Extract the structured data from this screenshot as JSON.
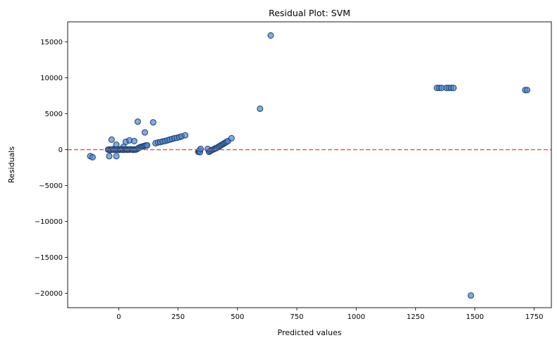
{
  "chart_data": {
    "type": "scatter",
    "title": "Residual Plot: SVM",
    "xlabel": "Predicted values",
    "ylabel": "Residuals",
    "xlim": [
      -215,
      1822
    ],
    "ylim": [
      -22000,
      17800
    ],
    "xticks": [
      0,
      250,
      500,
      750,
      1000,
      1250,
      1500,
      1750
    ],
    "yticks": [
      -20000,
      -15000,
      -10000,
      -5000,
      0,
      5000,
      10000,
      15000
    ],
    "x_tick_labels": [
      "0",
      "250",
      "500",
      "750",
      "1000",
      "1250",
      "1500",
      "1750"
    ],
    "y_tick_labels": [
      "−20000",
      "−15000",
      "−10000",
      "−5000",
      "0",
      "5000",
      "10000",
      "15000"
    ],
    "grid": false,
    "reference_line": {
      "y": 0,
      "style": "dashed",
      "color": "#e8523f"
    },
    "marker_fill": "#4a86d9",
    "marker_edge": "#1f3f66",
    "points": [
      {
        "x": 640,
        "y": 15900
      },
      {
        "x": 595,
        "y": 5700
      },
      {
        "x": 80,
        "y": 3900
      },
      {
        "x": 145,
        "y": 3800
      },
      {
        "x": 110,
        "y": 2400
      },
      {
        "x": -30,
        "y": 1400
      },
      {
        "x": 30,
        "y": 1100
      },
      {
        "x": 45,
        "y": 1300
      },
      {
        "x": 65,
        "y": 1200
      },
      {
        "x": -10,
        "y": 700
      },
      {
        "x": 20,
        "y": 400
      },
      {
        "x": -120,
        "y": -900
      },
      {
        "x": -110,
        "y": -1050
      },
      {
        "x": -40,
        "y": -900
      },
      {
        "x": -10,
        "y": -900
      },
      {
        "x": 1483,
        "y": -20300
      },
      {
        "x": 1340,
        "y": 8600
      },
      {
        "x": 1350,
        "y": 8600
      },
      {
        "x": 1360,
        "y": 8600
      },
      {
        "x": 1380,
        "y": 8600
      },
      {
        "x": 1390,
        "y": 8600
      },
      {
        "x": 1400,
        "y": 8600
      },
      {
        "x": 1410,
        "y": 8600
      },
      {
        "x": 1712,
        "y": 8300
      },
      {
        "x": 1720,
        "y": 8300
      },
      {
        "x": -45,
        "y": 0
      },
      {
        "x": -40,
        "y": 50
      },
      {
        "x": -35,
        "y": -50
      },
      {
        "x": -30,
        "y": 0
      },
      {
        "x": -25,
        "y": 80
      },
      {
        "x": -20,
        "y": -30
      },
      {
        "x": -15,
        "y": 20
      },
      {
        "x": -10,
        "y": 0
      },
      {
        "x": -5,
        "y": 60
      },
      {
        "x": 0,
        "y": -40
      },
      {
        "x": 5,
        "y": 30
      },
      {
        "x": 10,
        "y": 0
      },
      {
        "x": 15,
        "y": 50
      },
      {
        "x": 20,
        "y": -20
      },
      {
        "x": 25,
        "y": 10
      },
      {
        "x": 30,
        "y": 40
      },
      {
        "x": 35,
        "y": -10
      },
      {
        "x": 40,
        "y": 30
      },
      {
        "x": 45,
        "y": 0
      },
      {
        "x": 50,
        "y": 60
      },
      {
        "x": 55,
        "y": 20
      },
      {
        "x": 60,
        "y": -30
      },
      {
        "x": 65,
        "y": 40
      },
      {
        "x": 70,
        "y": 0
      },
      {
        "x": 75,
        "y": 50
      },
      {
        "x": 80,
        "y": 150
      },
      {
        "x": 85,
        "y": 250
      },
      {
        "x": 90,
        "y": 350
      },
      {
        "x": 95,
        "y": 400
      },
      {
        "x": 100,
        "y": 450
      },
      {
        "x": 105,
        "y": 500
      },
      {
        "x": 110,
        "y": 550
      },
      {
        "x": 115,
        "y": 600
      },
      {
        "x": 120,
        "y": 600
      },
      {
        "x": 155,
        "y": 900
      },
      {
        "x": 165,
        "y": 1000
      },
      {
        "x": 175,
        "y": 1050
      },
      {
        "x": 185,
        "y": 1150
      },
      {
        "x": 195,
        "y": 1200
      },
      {
        "x": 205,
        "y": 1300
      },
      {
        "x": 215,
        "y": 1400
      },
      {
        "x": 225,
        "y": 1500
      },
      {
        "x": 235,
        "y": 1600
      },
      {
        "x": 245,
        "y": 1650
      },
      {
        "x": 255,
        "y": 1750
      },
      {
        "x": 265,
        "y": 1850
      },
      {
        "x": 280,
        "y": 2000
      },
      {
        "x": 335,
        "y": -300
      },
      {
        "x": 338,
        "y": -200
      },
      {
        "x": 340,
        "y": -100
      },
      {
        "x": 342,
        "y": -350
      },
      {
        "x": 345,
        "y": 100
      },
      {
        "x": 375,
        "y": 100
      },
      {
        "x": 380,
        "y": -300
      },
      {
        "x": 385,
        "y": -200
      },
      {
        "x": 390,
        "y": -100
      },
      {
        "x": 395,
        "y": 0
      },
      {
        "x": 400,
        "y": 50
      },
      {
        "x": 405,
        "y": 150
      },
      {
        "x": 410,
        "y": 200
      },
      {
        "x": 415,
        "y": 300
      },
      {
        "x": 420,
        "y": 400
      },
      {
        "x": 425,
        "y": 500
      },
      {
        "x": 430,
        "y": 600
      },
      {
        "x": 435,
        "y": 700
      },
      {
        "x": 440,
        "y": 800
      },
      {
        "x": 445,
        "y": 900
      },
      {
        "x": 450,
        "y": 1000
      },
      {
        "x": 455,
        "y": 1100
      },
      {
        "x": 460,
        "y": 1200
      },
      {
        "x": 475,
        "y": 1600
      }
    ]
  }
}
